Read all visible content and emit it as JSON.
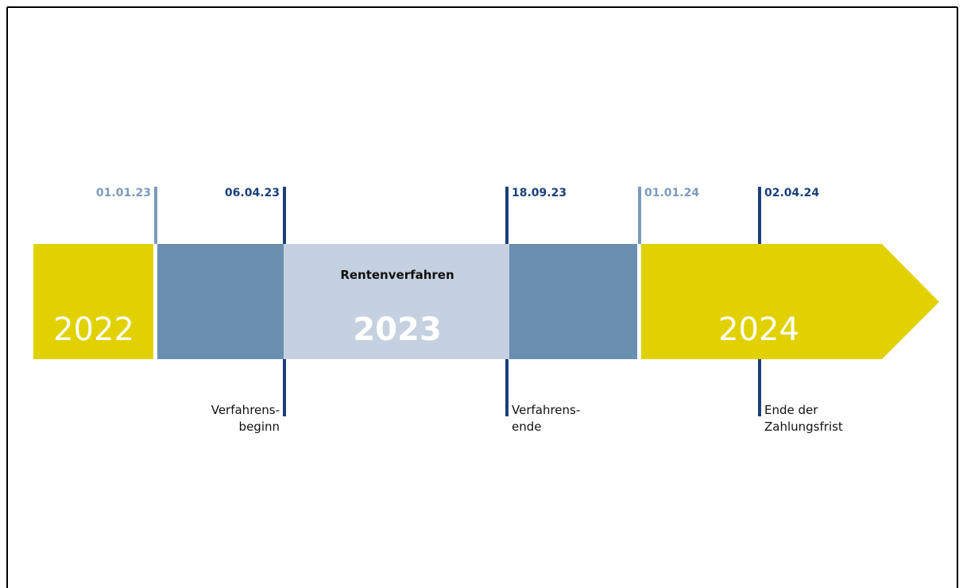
{
  "years": [
    "2022",
    "2023",
    "2024"
  ],
  "phase": "Rentenverfahren",
  "dates": [
    "01.01.23",
    "06.04.23",
    "18.09.23",
    "01.01.24",
    "02.04.24"
  ],
  "events": [
    {
      "lines": [
        "Verfahrens-",
        "beginn"
      ]
    },
    {
      "lines": [
        "Verfahrens-",
        "ende"
      ]
    },
    {
      "lines": [
        "Ende der",
        "Zahlungsfrist"
      ]
    }
  ]
}
